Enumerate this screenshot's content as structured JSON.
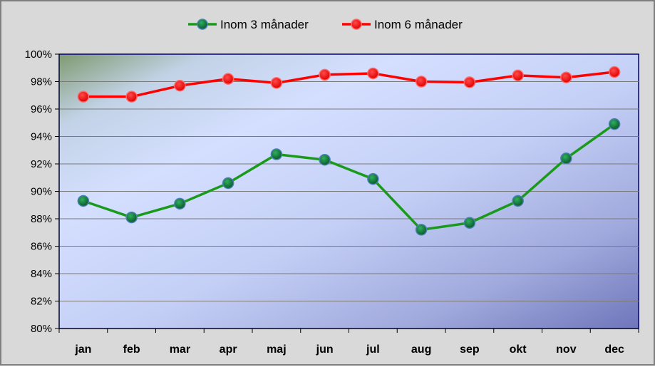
{
  "chart_data": {
    "type": "line",
    "categories": [
      "jan",
      "feb",
      "mar",
      "apr",
      "maj",
      "jun",
      "jul",
      "aug",
      "sep",
      "okt",
      "nov",
      "dec"
    ],
    "series": [
      {
        "name": "Inom 3 månader",
        "color": "#1a9a1a",
        "marker_color": "#0b6b33",
        "values": [
          89.3,
          88.1,
          89.1,
          90.6,
          92.7,
          92.3,
          90.9,
          87.2,
          87.7,
          89.3,
          92.4,
          94.9
        ]
      },
      {
        "name": "Inom 6 månader",
        "color": "#ff0000",
        "marker_color": "#ff1a1a",
        "values": [
          96.9,
          96.9,
          97.7,
          98.2,
          97.9,
          98.5,
          98.6,
          98.0,
          97.95,
          98.45,
          98.3,
          98.7
        ]
      }
    ],
    "ylim": [
      80,
      100
    ],
    "yticks": [
      "80%",
      "82%",
      "84%",
      "86%",
      "88%",
      "90%",
      "92%",
      "94%",
      "96%",
      "98%",
      "100%"
    ],
    "grid": true,
    "legend_position": "top"
  }
}
